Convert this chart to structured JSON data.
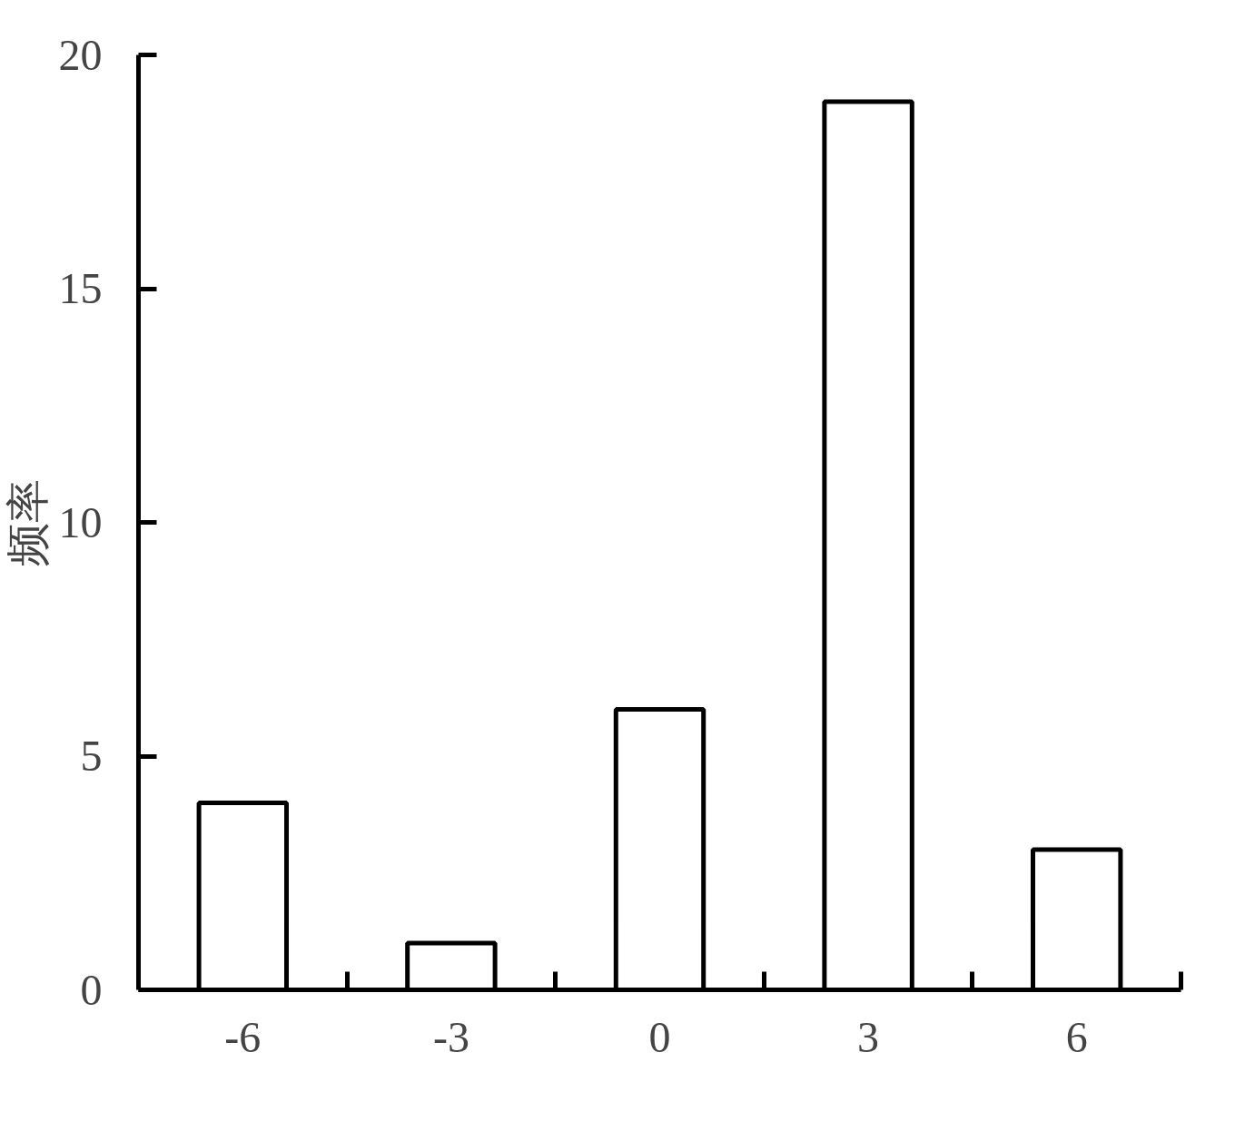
{
  "chart_data": {
    "type": "bar",
    "ylabel": "频率",
    "categories": [
      "-6",
      "-3",
      "0",
      "3",
      "6"
    ],
    "values": [
      4,
      1,
      6,
      19,
      3
    ],
    "color": "#ffffff",
    "ylim": [
      0,
      20
    ],
    "yticks": [
      0,
      5,
      10,
      15,
      20
    ],
    "grid": false
  }
}
